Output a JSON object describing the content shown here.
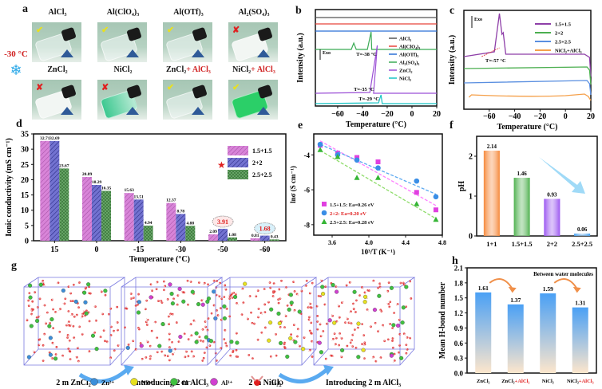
{
  "panel_a": {
    "label": "a",
    "condition": "-30 °C",
    "snowflake_icon": "❄",
    "samples": [
      {
        "name": "AlCl₃",
        "result": "pass",
        "liquid": "clear"
      },
      {
        "name": "Al(ClO₄)₃",
        "result": "pass",
        "liquid": "clear"
      },
      {
        "name": "Al(OTf)₃",
        "result": "pass",
        "liquid": "clear"
      },
      {
        "name": "Al₂(SO₄)₃",
        "result": "fail",
        "liquid": "frozen-white"
      },
      {
        "name": "ZnCl₂",
        "result": "fail",
        "liquid": "frozen-white"
      },
      {
        "name": "NiCl₂",
        "result": "fail",
        "liquid": "frozen-green"
      },
      {
        "name": "ZnCl₂",
        "name_suffix": "+ AlCl₃",
        "result": "pass",
        "liquid": "clear"
      },
      {
        "name": "NiCl₂",
        "name_suffix": "+ AlCl₃",
        "result": "pass",
        "liquid": "green"
      }
    ],
    "pass_symbol": "✔",
    "fail_symbol": "✘"
  },
  "chart_data": [
    {
      "id": "b",
      "type": "line",
      "label": "b",
      "xlabel": "Temperature (°C)",
      "ylabel": "Intensity (a.u.)",
      "xlim": [
        -78,
        20
      ],
      "xticks": [
        -60,
        -40,
        -20,
        0,
        20
      ],
      "annotation_exo": "Exo",
      "series": [
        {
          "name": "AlCl₃",
          "color": "#555555",
          "offset": 5,
          "features": "flat"
        },
        {
          "name": "Al(ClO₄)₃",
          "color": "#e8433a",
          "offset": 4.5,
          "features": "flat"
        },
        {
          "name": "Al(OTf)₃",
          "color": "#2a6fd6",
          "offset": 4.0,
          "features": "flat"
        },
        {
          "name": "Al₂(SO₄)₃",
          "color": "#3bab55",
          "offset": 3.2,
          "peaks": [
            -47,
            -33
          ],
          "onset": -38
        },
        {
          "name": "ZnCl₂",
          "color": "#9b4fd6",
          "offset": 1.0,
          "peaks": [
            -28
          ],
          "onset": -35
        },
        {
          "name": "NiCl₂",
          "color": "#18c4c4",
          "offset": 0.2,
          "peaks": [
            -25
          ],
          "onset": -29
        }
      ],
      "annotations": [
        "T=-38 °C",
        "T=-35 °C",
        "T=-29 °C"
      ]
    },
    {
      "id": "c",
      "type": "line",
      "label": "c",
      "xlabel": "Temperature (°C)",
      "ylabel": "Intensity (a.u.)",
      "xlim": [
        -80,
        20
      ],
      "xticks": [
        -60,
        -40,
        -20,
        0,
        20
      ],
      "annotation_exo": "Exo",
      "series": [
        {
          "name": "1.5+1.5",
          "color": "#8e3fa8",
          "peaks": [
            -52
          ],
          "onset": -57
        },
        {
          "name": "2+2",
          "color": "#4caf50",
          "features": "flat"
        },
        {
          "name": "2.5+2.5",
          "color": "#5a8fe0",
          "features": "flat"
        },
        {
          "name": "NiCl₂+AlCl₃",
          "color": "#f5a04a",
          "features": "flat"
        }
      ],
      "annotations": [
        "T=-57 °C"
      ]
    },
    {
      "id": "d",
      "type": "bar",
      "label": "d",
      "xlabel": "Temperature (°C)",
      "ylabel": "Ionic conductivity (mS cm⁻¹)",
      "ylim": [
        0,
        35
      ],
      "yticks": [
        0,
        5,
        10,
        15,
        20,
        25,
        30,
        35
      ],
      "categories": [
        "15",
        "0",
        "-15",
        "-30",
        "-50",
        "-60"
      ],
      "series": [
        {
          "name": "1.5+1.5",
          "color": "#d884d8",
          "values": [
            32.71,
            20.89,
            15.63,
            12.37,
            2.09,
            0.81
          ]
        },
        {
          "name": "2+2",
          "color": "#7272d0",
          "values": [
            32.69,
            18.29,
            13.51,
            8.78,
            3.91,
            1.68
          ]
        },
        {
          "name": "2.5+2.5",
          "color": "#6aa86a",
          "values": [
            23.67,
            16.35,
            4.94,
            4.88,
            1.08,
            0.43
          ]
        }
      ],
      "highlighted": [
        {
          "series": 1,
          "index": 4,
          "value": "3.91"
        },
        {
          "series": 1,
          "index": 5,
          "value": "1.68"
        }
      ],
      "star_icon": "★",
      "legend": "top-right"
    },
    {
      "id": "e",
      "type": "scatter",
      "label": "e",
      "xlabel": "10³/T (K⁻¹)",
      "ylabel": "lnσ (S cm⁻¹)",
      "xlim": [
        3.4,
        4.8
      ],
      "ylim": [
        -8.6,
        -2.8
      ],
      "xticks": [
        3.6,
        4.0,
        4.4,
        4.8
      ],
      "yticks": [
        -4,
        -6,
        -8
      ],
      "x": [
        3.47,
        3.66,
        3.87,
        4.1,
        4.52,
        4.73
      ],
      "series": [
        {
          "name": "1.5+1.5",
          "ea": "Ea=0.26 eV",
          "color": "#e040e0",
          "marker": "square",
          "values": [
            -3.45,
            -3.9,
            -4.15,
            -4.4,
            -6.15,
            -7.15
          ],
          "fit": [
            -3.2,
            -6.9
          ]
        },
        {
          "name": "2+2",
          "ea": "Ea=0.20 eV",
          "color": "#3a8ee6",
          "marker": "circle",
          "values": [
            -3.4,
            -4.0,
            -4.3,
            -4.75,
            -5.5,
            -6.4
          ],
          "fit": [
            -3.4,
            -6.25
          ],
          "label_color": "#e02020"
        },
        {
          "name": "2.5+2.5",
          "ea": "Ea=0.28 eV",
          "color": "#35b535",
          "marker": "triangle",
          "values": [
            -3.7,
            -4.1,
            -5.3,
            -5.3,
            -6.8,
            -7.7
          ],
          "fit": [
            -3.75,
            -7.65
          ]
        }
      ],
      "legend": "bottom-left"
    },
    {
      "id": "f",
      "type": "bar",
      "label": "f",
      "ylabel": "pH",
      "ylim": [
        0,
        2.5
      ],
      "yticks": [
        0,
        1,
        2
      ],
      "categories": [
        "1+1",
        "1.5+1.5",
        "2+2",
        "2.5+2.5"
      ],
      "values": [
        2.14,
        1.46,
        0.93,
        0.06
      ],
      "value_labels": [
        "2.14",
        "1.46",
        "0.93",
        "0.06"
      ],
      "colors": [
        "#f58a3c",
        "#4fb14f",
        "#9a55f0",
        "#4aa3f0"
      ]
    },
    {
      "id": "h",
      "type": "bar",
      "label": "h",
      "ylabel": "Mean H-bond number",
      "ylim": [
        0,
        2.1
      ],
      "yticks": [
        "0.0",
        "0.3",
        "0.6",
        "0.9",
        "1.2",
        "1.5",
        "1.8",
        "2.1"
      ],
      "categories": [
        {
          "main": "ZnCl₂",
          "suffix": ""
        },
        {
          "main": "ZnCl₂",
          "suffix": "+AlCl₃"
        },
        {
          "main": "NiCl₂",
          "suffix": ""
        },
        {
          "main": "NiCl₂",
          "suffix": "+AlCl₃"
        }
      ],
      "values": [
        1.61,
        1.37,
        1.59,
        1.31
      ],
      "value_labels": [
        "1.61",
        "1.37",
        "1.59",
        "1.31"
      ],
      "annotation": "Between water molecules"
    }
  ],
  "panel_g": {
    "label": "g",
    "boxes": [
      {
        "caption": "2 m ZnCl₂"
      },
      {
        "caption": "Introducing 2 m AlCl₃"
      },
      {
        "caption": "2 m NiCl₂"
      },
      {
        "caption": "Introducing 2 m AlCl₃"
      }
    ],
    "legend": [
      {
        "name": "Zn²⁺",
        "color": "#3c8ed8"
      },
      {
        "name": "Ni²⁺",
        "color": "#e6e020"
      },
      {
        "name": "Cl⁻",
        "color": "#40c040"
      },
      {
        "name": "Al³⁺",
        "color": "#d040d0"
      },
      {
        "name": "H₂O",
        "color": "#e02020"
      }
    ]
  }
}
